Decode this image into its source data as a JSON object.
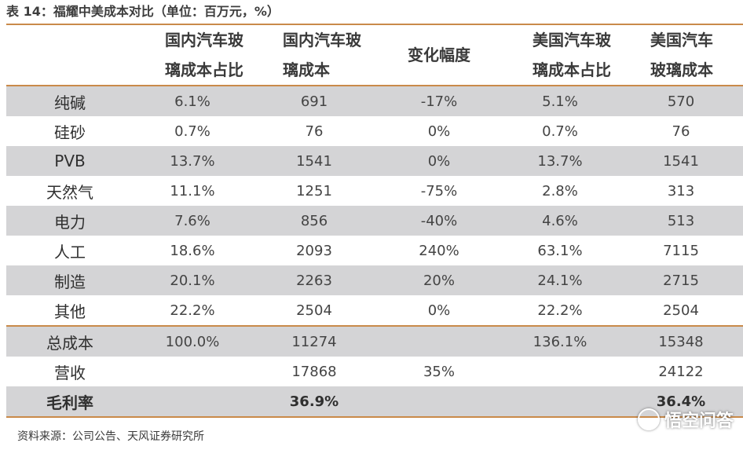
{
  "title": "表 14：福耀中美成本对比（单位：百万元，%）",
  "headers": {
    "h1": [
      "国内汽车玻",
      "璃成本占比"
    ],
    "h2": [
      "国内汽车玻",
      "璃成本"
    ],
    "h3": "变化幅度",
    "h4": [
      "美国汽车玻",
      "璃成本占比"
    ],
    "h5": [
      "美国汽车",
      "玻璃成本"
    ]
  },
  "rows": [
    {
      "label": "纯碱",
      "cn_share": "6.1%",
      "cn_cost": "691",
      "change": "-17%",
      "us_share": "5.1%",
      "us_cost": "570"
    },
    {
      "label": "硅砂",
      "cn_share": "0.7%",
      "cn_cost": "76",
      "change": "0%",
      "us_share": "0.7%",
      "us_cost": "76"
    },
    {
      "label": "PVB",
      "cn_share": "13.7%",
      "cn_cost": "1541",
      "change": "0%",
      "us_share": "13.7%",
      "us_cost": "1541"
    },
    {
      "label": "天然气",
      "cn_share": "11.1%",
      "cn_cost": "1251",
      "change": "-75%",
      "us_share": "2.8%",
      "us_cost": "313"
    },
    {
      "label": "电力",
      "cn_share": "7.6%",
      "cn_cost": "856",
      "change": "-40%",
      "us_share": "4.6%",
      "us_cost": "513"
    },
    {
      "label": "人工",
      "cn_share": "18.6%",
      "cn_cost": "2093",
      "change": "240%",
      "us_share": "63.1%",
      "us_cost": "7115"
    },
    {
      "label": "制造",
      "cn_share": "20.1%",
      "cn_cost": "2263",
      "change": "20%",
      "us_share": "24.1%",
      "us_cost": "2715"
    },
    {
      "label": "其他",
      "cn_share": "22.2%",
      "cn_cost": "2504",
      "change": "0%",
      "us_share": "22.2%",
      "us_cost": "2504"
    },
    {
      "label": "总成本",
      "cn_share": "100.0%",
      "cn_cost": "11274",
      "change": "",
      "us_share": "136.1%",
      "us_cost": "15348"
    },
    {
      "label": "营收",
      "cn_share": "",
      "cn_cost": "17868",
      "change": "35%",
      "us_share": "",
      "us_cost": "24122"
    },
    {
      "label": "毛利率",
      "cn_share": "",
      "cn_cost": "36.9%",
      "change": "",
      "us_share": "",
      "us_cost": "36.4%"
    }
  ],
  "source": "资料来源：公司公告、天风证券研究所",
  "watermark": "悟空问答",
  "colors": {
    "accent_rule": "#c98a4a",
    "shade_row": "#d4d4d6"
  }
}
